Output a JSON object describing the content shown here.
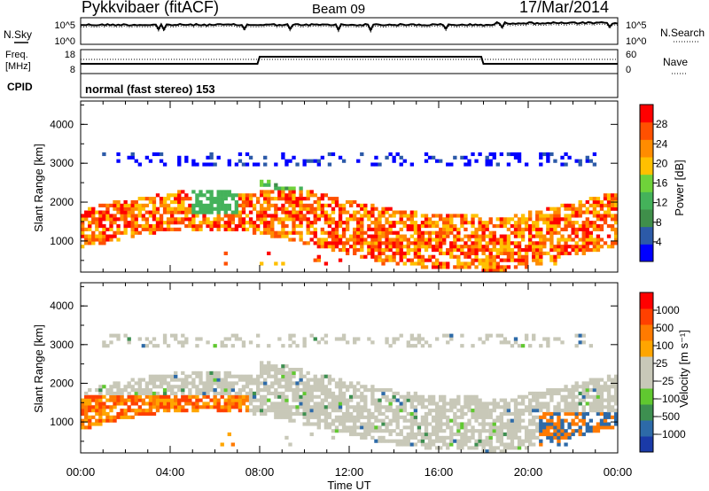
{
  "header": {
    "station": "Pykkvibaer (fitACF)",
    "beam": "Beam 09",
    "date": "17/Mar/2014"
  },
  "summary_panels": {
    "noise": {
      "left_label": "N.Sky",
      "right_label": "N.Search",
      "left_ticks": [
        "10^5",
        "10^0"
      ],
      "right_ticks": [
        "10^5",
        "10^0"
      ]
    },
    "freq": {
      "left_label_1": "Freq.",
      "left_label_2": "[MHz]",
      "right_label": "Nave",
      "left_ticks": [
        "18",
        "8"
      ],
      "right_ticks": [
        "60",
        "0"
      ]
    },
    "cpid": {
      "label": "CPID",
      "text": "normal (fast stereo) 153"
    }
  },
  "colors": {
    "power": [
      "#0000ff",
      "#2c5aa8",
      "#3f8f4a",
      "#44b25a",
      "#6fd23a",
      "#ffc000",
      "#ff8c00",
      "#ff5000",
      "#ff0000"
    ],
    "velocity": [
      "#ff0000",
      "#ff4000",
      "#ff7a00",
      "#ffa500",
      "#c8c8b8",
      "#c8c8b8",
      "#60c830",
      "#3d8f50",
      "#2d6aa8",
      "#1a3aa8"
    ]
  },
  "chart_data": [
    {
      "type": "heatmap",
      "name": "power",
      "ylabel": "Slant Range [km]",
      "xlabel": "Time UT",
      "yticks": [
        "1000",
        "2000",
        "3000",
        "4000"
      ],
      "xticks": [
        "00:00",
        "04:00",
        "08:00",
        "12:00",
        "16:00",
        "20:00",
        "00:00"
      ],
      "ylim": [
        200,
        4600
      ],
      "xlim": [
        0,
        24
      ],
      "colorbar_label": "Power [dB]",
      "colorbar_ticks": [
        "4",
        "8",
        "12",
        "16",
        "20",
        "24",
        "28"
      ]
    },
    {
      "type": "heatmap",
      "name": "velocity",
      "ylabel": "Slant Range [km]",
      "xlabel": "Time UT",
      "yticks": [
        "1000",
        "2000",
        "3000",
        "4000"
      ],
      "xticks": [
        "00:00",
        "04:00",
        "08:00",
        "12:00",
        "16:00",
        "20:00",
        "00:00"
      ],
      "ylim": [
        200,
        4600
      ],
      "xlim": [
        0,
        24
      ],
      "colorbar_label": "Velocity [m s⁻¹]",
      "colorbar_ticks": [
        "1000",
        "500",
        "100",
        "25",
        "−25",
        "−100",
        "−500",
        "−1000"
      ]
    }
  ],
  "xaxis": {
    "title": "Time UT"
  }
}
